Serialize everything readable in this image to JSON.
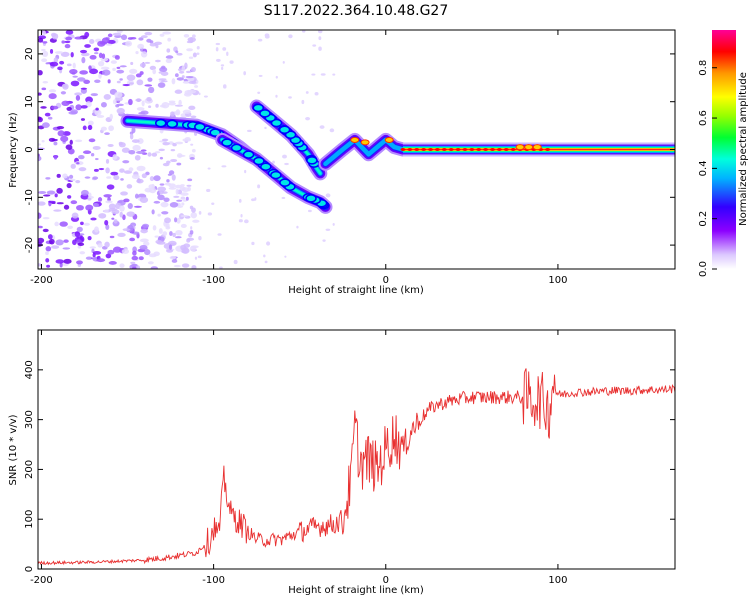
{
  "figure": {
    "title": "S117.2022.364.10.48.G27"
  },
  "chart_data": [
    {
      "type": "heatmap",
      "xlabel": "Height of straight line (km)",
      "ylabel": "Frequency (Hz)",
      "xlim": [
        -202,
        168
      ],
      "ylim": [
        -25,
        25
      ],
      "xticks": [
        -200,
        -100,
        0,
        100
      ],
      "yticks": [
        -20,
        -10,
        0,
        10,
        20
      ],
      "colorbar": {
        "label": "Normalized spectral amplitude",
        "range": [
          0,
          0.95
        ],
        "ticks": [
          0.0,
          0.2,
          0.4,
          0.6,
          0.8
        ],
        "tick_labels": [
          "0.0",
          "0.2",
          "0.4",
          "0.6",
          "0.8"
        ],
        "colormap": "rainbow (violet to red to pink)"
      },
      "features": {
        "noise_region_x": [
          -202,
          -120
        ],
        "ridges": [
          {
            "x": [
              -150,
              -130,
              -110,
              -95,
              -85,
              -80
            ],
            "freq": [
              6,
              5.5,
              5,
              3,
              0.5,
              -1
            ]
          },
          {
            "x": [
              -75,
              -65,
              -55,
              -45,
              -40,
              -38
            ],
            "freq": [
              9,
              6,
              3,
              -1,
              -4,
              -5
            ]
          },
          {
            "x": [
              -95,
              -85,
              -75,
              -65,
              -55,
              -45,
              -38,
              -35
            ],
            "freq": [
              2,
              0,
              -2,
              -5,
              -8,
              -10,
              -11,
              -12
            ]
          },
          {
            "x": [
              -35,
              -25,
              -18,
              -10,
              -5,
              0,
              5,
              10,
              168
            ],
            "freq": [
              -3,
              0,
              2,
              -1,
              0.5,
              2,
              0.5,
              0,
              0
            ]
          }
        ],
        "peak_line_x": [
          10,
          168
        ]
      }
    },
    {
      "type": "line",
      "xlabel": "Height of straight line (km)",
      "ylabel": "SNR (10 * v/v)",
      "xlim": [
        -202,
        168
      ],
      "ylim": [
        0,
        480
      ],
      "xticks": [
        -200,
        -100,
        0,
        100
      ],
      "yticks": [
        0,
        100,
        200,
        300,
        400
      ],
      "series": [
        {
          "color": "#e83030",
          "x": [
            -202,
            -180,
            -160,
            -140,
            -130,
            -120,
            -110,
            -102,
            -100,
            -97,
            -94,
            -90,
            -85,
            -80,
            -75,
            -70,
            -60,
            -50,
            -40,
            -30,
            -25,
            -20,
            -18,
            -15,
            -10,
            -5,
            0,
            5,
            10,
            15,
            20,
            25,
            30,
            40,
            50,
            60,
            70,
            80,
            90,
            95,
            98,
            100,
            105,
            110,
            120,
            130,
            140,
            150,
            160,
            168
          ],
          "y": [
            12,
            13,
            15,
            18,
            22,
            27,
            33,
            60,
            85,
            70,
            180,
            110,
            95,
            75,
            60,
            58,
            60,
            75,
            85,
            90,
            100,
            180,
            290,
            210,
            220,
            200,
            240,
            270,
            240,
            280,
            300,
            320,
            330,
            340,
            345,
            345,
            345,
            345,
            340,
            320,
            390,
            350,
            352,
            355,
            356,
            358,
            358,
            360,
            360,
            362
          ]
        }
      ]
    }
  ]
}
